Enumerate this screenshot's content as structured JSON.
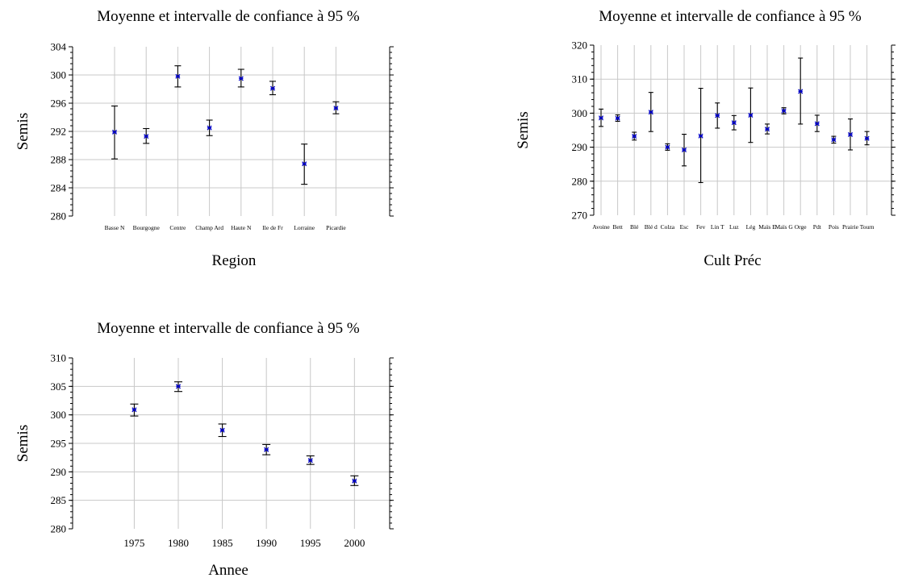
{
  "chart_data": [
    {
      "type": "scatter",
      "title": "Moyenne et intervalle de confiance à 95 %",
      "xlabel": "Region",
      "ylabel": "Semis",
      "ylim": [
        280,
        304
      ],
      "yticks": [
        280,
        284,
        288,
        292,
        296,
        300,
        304
      ],
      "grid": true,
      "categories": [
        "Basse N",
        "Bourgogne",
        "Centre",
        "Champ Ard",
        "Haute N",
        "Ile de Fr",
        "Lorraine",
        "Picardie"
      ],
      "series": [
        {
          "mean": [
            291.9,
            291.3,
            299.8,
            292.5,
            299.5,
            298.1,
            287.4,
            295.3
          ],
          "lower": [
            288.1,
            290.3,
            298.3,
            291.4,
            298.3,
            297.2,
            284.5,
            294.5
          ],
          "upper": [
            295.6,
            292.4,
            301.3,
            293.6,
            300.8,
            299.1,
            290.2,
            296.2
          ]
        }
      ]
    },
    {
      "type": "scatter",
      "title": "Moyenne et intervalle de confiance à 95 %",
      "xlabel": "Cult Préc",
      "ylabel": "Semis",
      "ylim": [
        270,
        320
      ],
      "yticks": [
        270,
        280,
        290,
        300,
        310,
        320
      ],
      "grid": true,
      "categories": [
        "Avoine",
        "Bett",
        "Blé",
        "Blé d",
        "Colza",
        "Esc",
        "Fev",
        "Lin T",
        "Luz",
        "Lég",
        "Maïs E",
        "Maïs G",
        "Orge",
        "Pdt",
        "Pois",
        "Prairie",
        "Tourn"
      ],
      "series": [
        {
          "mean": [
            298.6,
            298.5,
            293.2,
            300.3,
            290.0,
            289.2,
            293.3,
            299.3,
            297.2,
            299.4,
            295.3,
            300.7,
            306.4,
            296.9,
            292.2,
            293.7,
            292.6
          ],
          "lower": [
            296.1,
            297.6,
            292.1,
            294.6,
            289.1,
            284.5,
            279.6,
            295.6,
            295.1,
            291.4,
            293.9,
            299.8,
            296.8,
            294.6,
            291.2,
            289.2,
            290.7
          ],
          "upper": [
            301.2,
            299.5,
            294.4,
            306.1,
            291.0,
            293.8,
            307.3,
            303.0,
            299.3,
            307.4,
            296.8,
            301.6,
            316.2,
            299.4,
            293.2,
            298.3,
            294.6
          ]
        }
      ]
    },
    {
      "type": "scatter",
      "title": "Moyenne et intervalle de confiance à 95 %",
      "xlabel": "Annee",
      "ylabel": "Semis",
      "ylim": [
        280,
        310
      ],
      "yticks": [
        280,
        285,
        290,
        295,
        300,
        305,
        310
      ],
      "xlim": [
        1968,
        2004
      ],
      "xticks": [
        1975,
        1980,
        1985,
        1990,
        1995,
        2000
      ],
      "grid": true,
      "series": [
        {
          "x": [
            1975,
            1980,
            1985,
            1990,
            1995,
            2000
          ],
          "mean": [
            300.9,
            305.0,
            297.3,
            293.9,
            292.0,
            288.4
          ],
          "lower": [
            299.8,
            304.1,
            296.2,
            293.0,
            291.3,
            287.6
          ],
          "upper": [
            301.9,
            305.8,
            298.4,
            294.8,
            292.8,
            289.3
          ]
        }
      ]
    }
  ]
}
